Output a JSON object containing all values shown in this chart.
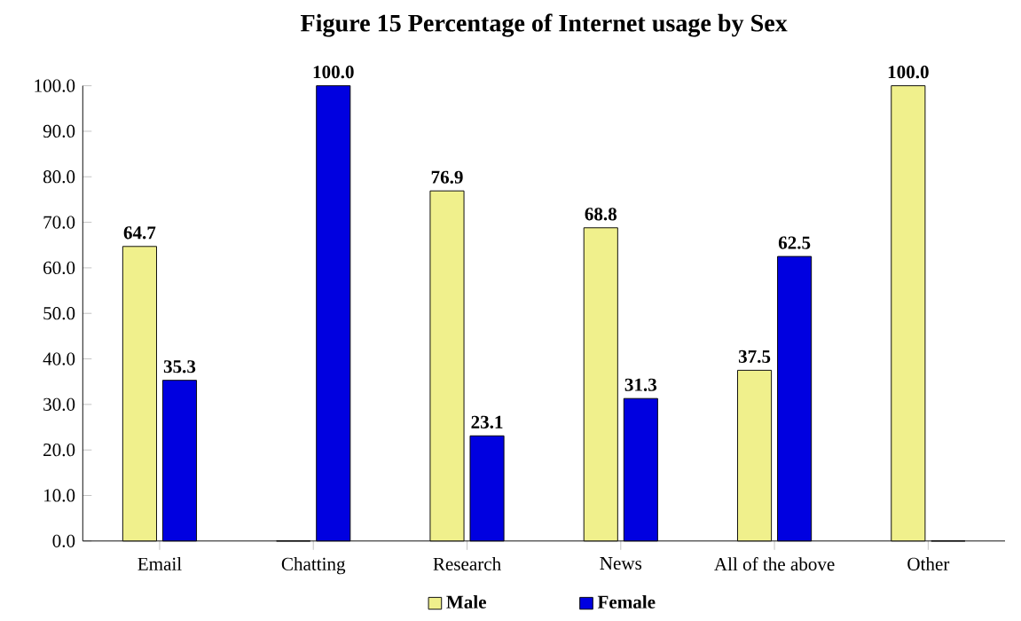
{
  "chart_data": {
    "type": "bar",
    "title": "Figure 15 Percentage of Internet usage by Sex",
    "categories": [
      "Email",
      "Chatting",
      "Research",
      "News",
      "All of the above",
      "Other"
    ],
    "series": [
      {
        "name": "Male",
        "color": "#f0f08c",
        "values": [
          64.7,
          0,
          76.9,
          68.8,
          37.5,
          100.0
        ],
        "value_labels": [
          "64.7",
          null,
          "76.9",
          "68.8",
          "37.5",
          "100.0"
        ]
      },
      {
        "name": "Female",
        "color": "#0000e0",
        "values": [
          35.3,
          100.0,
          23.1,
          31.3,
          62.5,
          0
        ],
        "value_labels": [
          "35.3",
          "100.0",
          "23.1",
          "31.3",
          "62.5",
          null
        ]
      }
    ],
    "ylim": [
      0,
      100
    ],
    "yticks": [
      {
        "value": 0,
        "label": "0.0"
      },
      {
        "value": 10,
        "label": "10.0"
      },
      {
        "value": 20,
        "label": "20.0"
      },
      {
        "value": 30,
        "label": "30.0"
      },
      {
        "value": 40,
        "label": "40.0"
      },
      {
        "value": 50,
        "label": "50.0"
      },
      {
        "value": 60,
        "label": "60.0"
      },
      {
        "value": 70,
        "label": "70.0"
      },
      {
        "value": 80,
        "label": "80.0"
      },
      {
        "value": 90,
        "label": "90.0"
      },
      {
        "value": 100,
        "label": "100.0"
      }
    ],
    "legend": "bottom"
  }
}
